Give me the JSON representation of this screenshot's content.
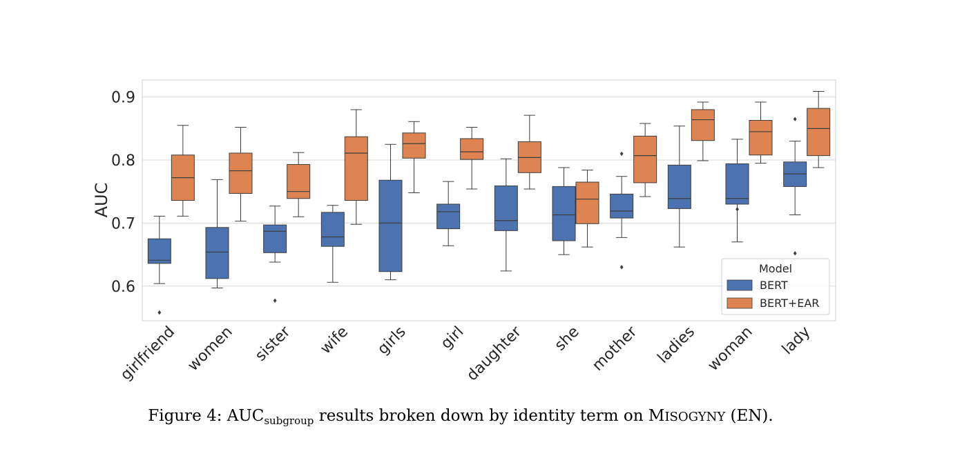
{
  "chart_data": {
    "type": "box",
    "ylabel": "AUC",
    "ylim": [
      0.545,
      0.927
    ],
    "yticks": [
      "0.6",
      "0.7",
      "0.8",
      "0.9"
    ],
    "ytick_values": [
      0.6,
      0.7,
      0.8,
      0.9
    ],
    "grid": true,
    "legend": {
      "title": "Model",
      "placement": "lower-right",
      "entries": [
        "BERT",
        "BERT+EAR"
      ]
    },
    "categories": [
      "girlfriend",
      "women",
      "sister",
      "wife",
      "girls",
      "girl",
      "daughter",
      "she",
      "mother",
      "ladies",
      "woman",
      "lady"
    ],
    "series": [
      {
        "name": "BERT",
        "color": "#4c72b0",
        "boxes": [
          {
            "whislo": 0.604,
            "q1": 0.636,
            "med": 0.641,
            "q3": 0.675,
            "whishi": 0.711,
            "fliers": [
              0.558
            ]
          },
          {
            "whislo": 0.597,
            "q1": 0.612,
            "med": 0.654,
            "q3": 0.693,
            "whishi": 0.769,
            "fliers": []
          },
          {
            "whislo": 0.638,
            "q1": 0.653,
            "med": 0.687,
            "q3": 0.697,
            "whishi": 0.727,
            "fliers": [
              0.577
            ]
          },
          {
            "whislo": 0.606,
            "q1": 0.663,
            "med": 0.678,
            "q3": 0.717,
            "whishi": 0.728,
            "fliers": []
          },
          {
            "whislo": 0.61,
            "q1": 0.623,
            "med": 0.7,
            "q3": 0.768,
            "whishi": 0.825,
            "fliers": []
          },
          {
            "whislo": 0.664,
            "q1": 0.691,
            "med": 0.718,
            "q3": 0.73,
            "whishi": 0.766,
            "fliers": []
          },
          {
            "whislo": 0.624,
            "q1": 0.688,
            "med": 0.704,
            "q3": 0.759,
            "whishi": 0.802,
            "fliers": []
          },
          {
            "whislo": 0.65,
            "q1": 0.672,
            "med": 0.713,
            "q3": 0.758,
            "whishi": 0.788,
            "fliers": []
          },
          {
            "whislo": 0.677,
            "q1": 0.708,
            "med": 0.719,
            "q3": 0.746,
            "whishi": 0.774,
            "fliers": [
              0.81,
              0.63
            ]
          },
          {
            "whislo": 0.662,
            "q1": 0.723,
            "med": 0.739,
            "q3": 0.792,
            "whishi": 0.854,
            "fliers": []
          },
          {
            "whislo": 0.67,
            "q1": 0.73,
            "med": 0.739,
            "q3": 0.794,
            "whishi": 0.833,
            "fliers": [
              0.722
            ]
          },
          {
            "whislo": 0.713,
            "q1": 0.758,
            "med": 0.778,
            "q3": 0.797,
            "whishi": 0.83,
            "fliers": [
              0.865,
              0.652
            ]
          }
        ]
      },
      {
        "name": "BERT+EAR",
        "color": "#dd8452",
        "boxes": [
          {
            "whislo": 0.711,
            "q1": 0.736,
            "med": 0.772,
            "q3": 0.808,
            "whishi": 0.855,
            "fliers": []
          },
          {
            "whislo": 0.703,
            "q1": 0.747,
            "med": 0.783,
            "q3": 0.811,
            "whishi": 0.852,
            "fliers": []
          },
          {
            "whislo": 0.71,
            "q1": 0.739,
            "med": 0.75,
            "q3": 0.793,
            "whishi": 0.812,
            "fliers": []
          },
          {
            "whislo": 0.698,
            "q1": 0.736,
            "med": 0.811,
            "q3": 0.837,
            "whishi": 0.88,
            "fliers": []
          },
          {
            "whislo": 0.748,
            "q1": 0.803,
            "med": 0.826,
            "q3": 0.843,
            "whishi": 0.861,
            "fliers": []
          },
          {
            "whislo": 0.754,
            "q1": 0.801,
            "med": 0.813,
            "q3": 0.834,
            "whishi": 0.852,
            "fliers": []
          },
          {
            "whislo": 0.754,
            "q1": 0.78,
            "med": 0.804,
            "q3": 0.829,
            "whishi": 0.871,
            "fliers": []
          },
          {
            "whislo": 0.662,
            "q1": 0.699,
            "med": 0.738,
            "q3": 0.765,
            "whishi": 0.784,
            "fliers": []
          },
          {
            "whislo": 0.742,
            "q1": 0.764,
            "med": 0.807,
            "q3": 0.838,
            "whishi": 0.858,
            "fliers": []
          },
          {
            "whislo": 0.799,
            "q1": 0.831,
            "med": 0.864,
            "q3": 0.88,
            "whishi": 0.892,
            "fliers": []
          },
          {
            "whislo": 0.795,
            "q1": 0.808,
            "med": 0.845,
            "q3": 0.863,
            "whishi": 0.892,
            "fliers": []
          },
          {
            "whislo": 0.788,
            "q1": 0.807,
            "med": 0.85,
            "q3": 0.882,
            "whishi": 0.909,
            "fliers": []
          }
        ]
      }
    ]
  },
  "caption": {
    "prefix": "Figure 4: AUC",
    "subscript": "subgroup",
    "middle": " results broken down by identity term on ",
    "sc_first": "M",
    "sc_rest": "ISOGYNY",
    "suffix": " (EN)."
  }
}
